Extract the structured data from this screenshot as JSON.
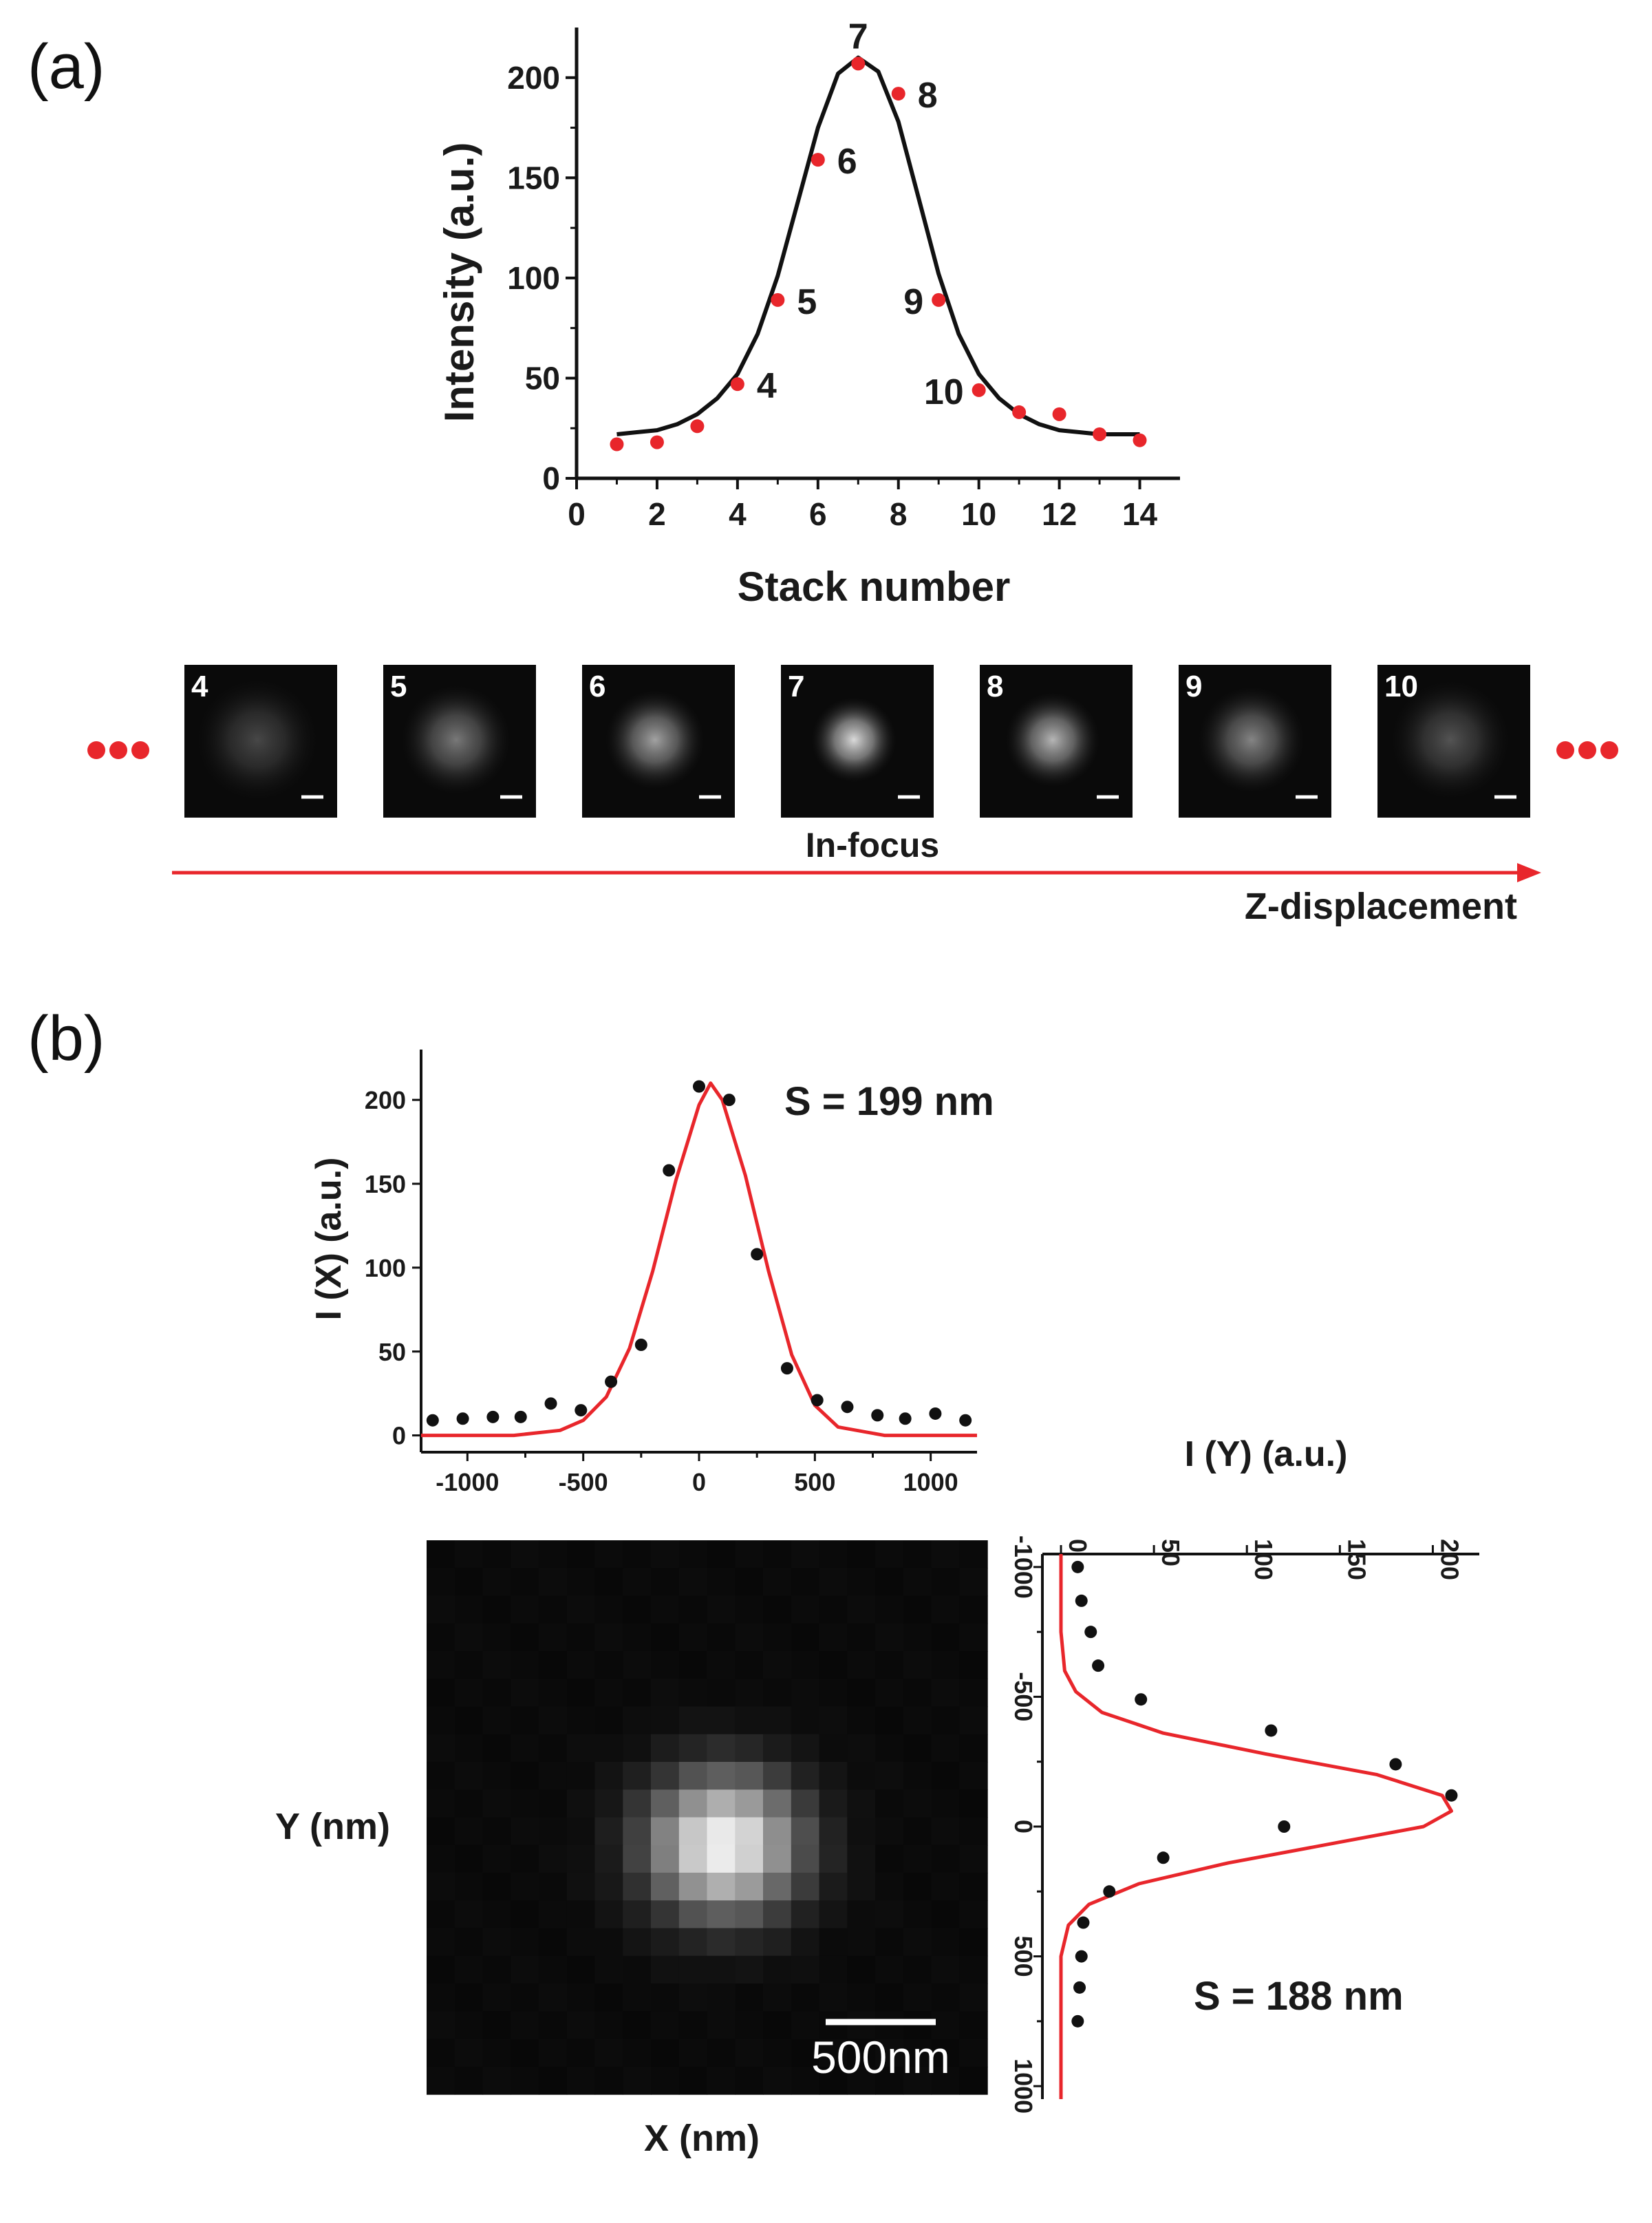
{
  "figure": {
    "panel_a_label": "(a)",
    "panel_b_label": "(b)",
    "in_focus_label": "In-focus",
    "z_displacement_label": "Z-displacement",
    "ellipsis_left": "•••",
    "ellipsis_right": "•••",
    "frames": [
      "4",
      "5",
      "6",
      "7",
      "8",
      "9",
      "10"
    ],
    "frame_intensity": [
      0.25,
      0.45,
      0.62,
      0.85,
      0.7,
      0.5,
      0.3
    ],
    "image_axis_x_label": "X (nm)",
    "image_axis_y_label": "Y (nm)",
    "scalebar_label": "500nm",
    "colors": {
      "red": "#e8262b",
      "black": "#111111",
      "arrow": "#e8262b"
    }
  },
  "chart_data": [
    {
      "type": "scatter",
      "title": "",
      "xlabel": "Stack number",
      "ylabel": "Intensity (a.u.)",
      "xlim": [
        0,
        15
      ],
      "ylim": [
        0,
        225
      ],
      "xticks": [
        0,
        2,
        4,
        6,
        8,
        10,
        12,
        14
      ],
      "yticks": [
        0,
        50,
        100,
        150,
        200
      ],
      "series": [
        {
          "marker_color": "#e8262b",
          "x": [
            1,
            2,
            3,
            4,
            5,
            6,
            7,
            8,
            9,
            10,
            11,
            12,
            13,
            14
          ],
          "y": [
            17,
            18,
            26,
            47,
            89,
            159,
            207,
            192,
            89,
            44,
            33,
            32,
            22,
            19
          ]
        },
        {
          "line_color": "#111111",
          "fit": "gaussian",
          "x": [
            1,
            1.5,
            2,
            2.5,
            3,
            3.5,
            4,
            4.5,
            5,
            5.5,
            6,
            6.5,
            7,
            7.5,
            8,
            8.5,
            9,
            9.5,
            10,
            10.5,
            11,
            11.5,
            12,
            12.5,
            13,
            13.5,
            14
          ],
          "y": [
            22,
            23,
            24,
            27,
            32,
            40,
            52,
            72,
            101,
            138,
            175,
            202,
            210,
            203,
            178,
            140,
            102,
            72,
            52,
            40,
            32,
            27,
            24,
            23,
            22,
            22,
            22
          ]
        }
      ],
      "annotations": [
        "4",
        "5",
        "6",
        "7",
        "8",
        "9",
        "10"
      ]
    },
    {
      "type": "scatter",
      "title": "",
      "xlabel": "",
      "ylabel": "I (X) (a.u.)",
      "xlim": [
        -1200,
        1200
      ],
      "ylim": [
        -10,
        230
      ],
      "xticks": [
        -1000,
        -500,
        0,
        500,
        1000
      ],
      "yticks": [
        0,
        50,
        100,
        150,
        200
      ],
      "annotation": "S = 199 nm",
      "series": [
        {
          "marker_color": "#111111",
          "x": [
            -1150,
            -1020,
            -890,
            -770,
            -640,
            -510,
            -380,
            -250,
            -130,
            0,
            130,
            250,
            380,
            510,
            640,
            770,
            890,
            1020,
            1150
          ],
          "y": [
            9,
            10,
            11,
            11,
            19,
            15,
            32,
            54,
            158,
            208,
            200,
            108,
            40,
            21,
            17,
            12,
            10,
            13,
            9
          ]
        },
        {
          "line_color": "#e8262b",
          "fit": "gaussian",
          "x": [
            -1200,
            -1000,
            -800,
            -600,
            -500,
            -400,
            -300,
            -200,
            -100,
            0,
            50,
            100,
            200,
            300,
            400,
            500,
            600,
            800,
            1000,
            1200
          ],
          "y": [
            0,
            0,
            0,
            3,
            9,
            23,
            52,
            98,
            152,
            197,
            210,
            200,
            155,
            98,
            48,
            18,
            5,
            0,
            0,
            0
          ]
        }
      ]
    },
    {
      "type": "scatter",
      "title": "",
      "xlabel": "I (Y) (a.u.)",
      "ylabel": "",
      "xlim": [
        -10,
        225
      ],
      "ylim": [
        -1050,
        1050
      ],
      "xticks": [
        0,
        50,
        100,
        150,
        200
      ],
      "yticks": [
        -1000,
        -500,
        0,
        500,
        1000
      ],
      "annotation": "S = 188 nm",
      "series": [
        {
          "marker_color": "#111111",
          "x": [
            9,
            11,
            16,
            20,
            43,
            113,
            180,
            210,
            120,
            55,
            26,
            12,
            11,
            10,
            9
          ],
          "y": [
            -1000,
            -870,
            -750,
            -620,
            -490,
            -370,
            -240,
            -120,
            0,
            120,
            250,
            370,
            500,
            620,
            750
          ],
          "y_note": "values as printed on the inverted axis"
        },
        {
          "line_color": "#e8262b",
          "fit": "gaussian",
          "x": [
            0,
            0,
            0,
            2,
            8,
            22,
            55,
            110,
            170,
            205,
            210,
            195,
            150,
            90,
            42,
            15,
            4,
            0,
            0,
            0
          ],
          "y": [
            -1050,
            -900,
            -750,
            -600,
            -520,
            -440,
            -360,
            -280,
            -200,
            -120,
            -60,
            0,
            60,
            140,
            220,
            300,
            380,
            500,
            700,
            1050
          ]
        }
      ]
    }
  ]
}
